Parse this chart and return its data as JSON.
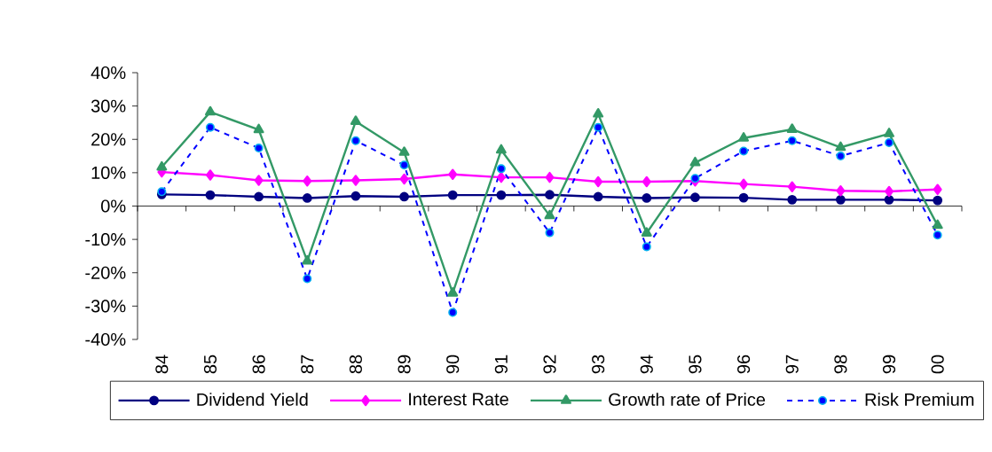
{
  "chart_data": {
    "type": "line",
    "categories": [
      "84",
      "85",
      "86",
      "87",
      "88",
      "89",
      "90",
      "91",
      "92",
      "93",
      "94",
      "95",
      "96",
      "97",
      "98",
      "99",
      "00"
    ],
    "series": [
      {
        "name": "Dividend Yield",
        "color": "#000080",
        "marker": "circle",
        "line_style": "solid",
        "values": [
          3.5,
          3.3,
          2.8,
          2.4,
          3.0,
          2.8,
          3.3,
          3.3,
          3.4,
          2.8,
          2.4,
          2.6,
          2.5,
          1.9,
          1.9,
          1.9,
          1.7
        ]
      },
      {
        "name": "Interest Rate",
        "color": "#ff00ff",
        "marker": "diamond",
        "line_style": "solid",
        "values": [
          10.2,
          9.3,
          7.7,
          7.5,
          7.7,
          8.1,
          9.5,
          8.6,
          8.6,
          7.3,
          7.3,
          7.5,
          6.6,
          5.8,
          4.6,
          4.4,
          5.0
        ]
      },
      {
        "name": "Growth rate of Price",
        "color": "#339966",
        "marker": "triangle",
        "line_style": "solid",
        "values": [
          11.7,
          28.2,
          22.9,
          -16.5,
          25.4,
          16.1,
          -26.1,
          16.8,
          -2.9,
          27.6,
          -8.1,
          13.0,
          20.4,
          23.0,
          17.6,
          21.7,
          -5.8
        ]
      },
      {
        "name": "Risk Premium",
        "color": "#0000ff",
        "marker": "circle",
        "line_style": "dashed",
        "values": [
          4.3,
          23.6,
          17.4,
          -21.8,
          19.6,
          12.3,
          -31.9,
          11.2,
          -8.0,
          23.6,
          -12.2,
          8.3,
          16.5,
          19.6,
          15.0,
          19.0,
          -8.7
        ]
      }
    ],
    "ylim": [
      -40,
      40
    ],
    "yticks": [
      {
        "value": -40,
        "label": "-40%"
      },
      {
        "value": -30,
        "label": "-30%"
      },
      {
        "value": -20,
        "label": "-20%"
      },
      {
        "value": -10,
        "label": "-10%"
      },
      {
        "value": 0,
        "label": "0%"
      },
      {
        "value": 10,
        "label": "10%"
      },
      {
        "value": 20,
        "label": "20%"
      },
      {
        "value": 30,
        "label": "30%"
      },
      {
        "value": 40,
        "label": "40%"
      }
    ],
    "legend": "bottom"
  }
}
